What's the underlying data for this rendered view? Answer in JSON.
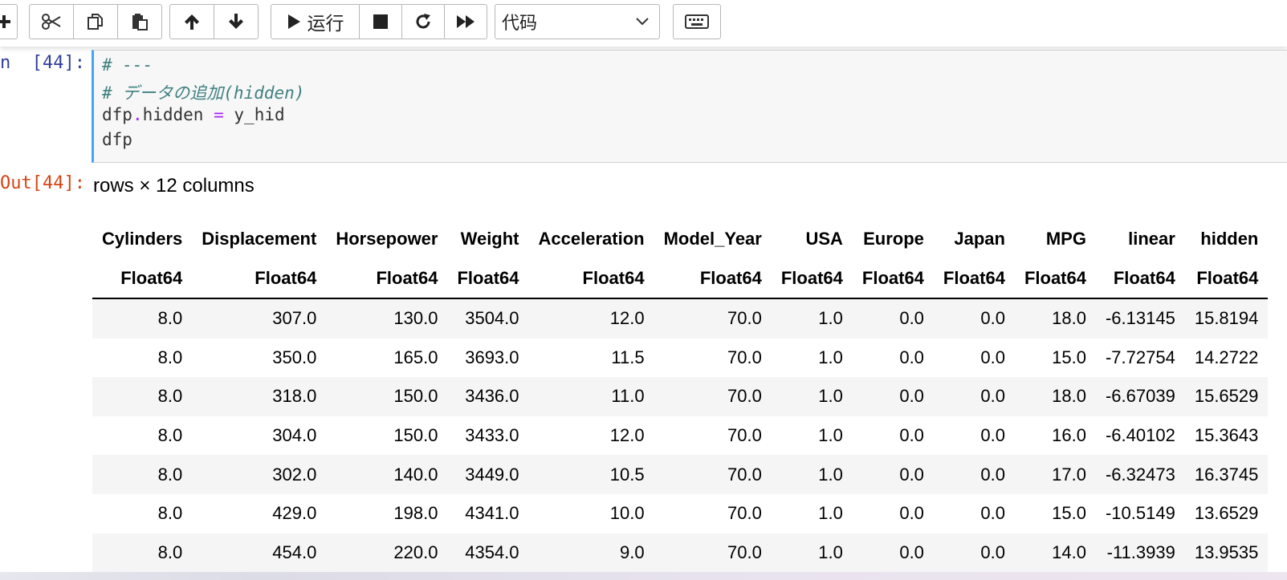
{
  "toolbar": {
    "run_label": "运行",
    "cell_type": "代码",
    "accent": "#42a5f5"
  },
  "icons": [
    "add-icon",
    "cut-icon",
    "copy-icon",
    "paste-icon",
    "move-up-icon",
    "move-down-icon",
    "run-icon",
    "stop-icon",
    "restart-icon",
    "fast-forward-icon",
    "chevron-down-icon",
    "keyboard-icon"
  ],
  "cell": {
    "in_prompt": "n  [44]:",
    "out_prompt": "Out[44]:",
    "code": [
      "# ---",
      "# データの追加(hidden)",
      "dfp.hidden = y_hid",
      "dfp"
    ]
  },
  "output": {
    "rows_info": "rows × 12 columns",
    "columns": [
      "Cylinders",
      "Displacement",
      "Horsepower",
      "Weight",
      "Acceleration",
      "Model_Year",
      "USA",
      "Europe",
      "Japan",
      "MPG",
      "linear",
      "hidden"
    ],
    "types": [
      "Float64",
      "Float64",
      "Float64",
      "Float64",
      "Float64",
      "Float64",
      "Float64",
      "Float64",
      "Float64",
      "Float64",
      "Float64",
      "Float64"
    ],
    "rows": [
      [
        "8.0",
        "307.0",
        "130.0",
        "3504.0",
        "12.0",
        "70.0",
        "1.0",
        "0.0",
        "0.0",
        "18.0",
        "-6.13145",
        "15.8194"
      ],
      [
        "8.0",
        "350.0",
        "165.0",
        "3693.0",
        "11.5",
        "70.0",
        "1.0",
        "0.0",
        "0.0",
        "15.0",
        "-7.72754",
        "14.2722"
      ],
      [
        "8.0",
        "318.0",
        "150.0",
        "3436.0",
        "11.0",
        "70.0",
        "1.0",
        "0.0",
        "0.0",
        "18.0",
        "-6.67039",
        "15.6529"
      ],
      [
        "8.0",
        "304.0",
        "150.0",
        "3433.0",
        "12.0",
        "70.0",
        "1.0",
        "0.0",
        "0.0",
        "16.0",
        "-6.40102",
        "15.3643"
      ],
      [
        "8.0",
        "302.0",
        "140.0",
        "3449.0",
        "10.5",
        "70.0",
        "1.0",
        "0.0",
        "0.0",
        "17.0",
        "-6.32473",
        "16.3745"
      ],
      [
        "8.0",
        "429.0",
        "198.0",
        "4341.0",
        "10.0",
        "70.0",
        "1.0",
        "0.0",
        "0.0",
        "15.0",
        "-10.5149",
        "13.6529"
      ],
      [
        "8.0",
        "454.0",
        "220.0",
        "4354.0",
        "9.0",
        "70.0",
        "1.0",
        "0.0",
        "0.0",
        "14.0",
        "-11.3939",
        "13.9535"
      ]
    ]
  }
}
